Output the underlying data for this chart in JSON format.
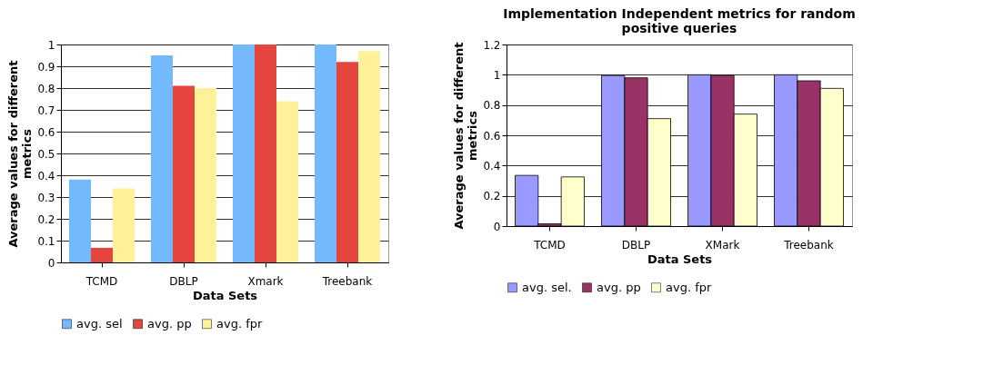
{
  "chart_data": [
    {
      "type": "bar",
      "xlabel": "Data Sets",
      "ylabel": "Average values for different metrics",
      "categories": [
        "TCMD",
        "DBLP",
        "Xmark",
        "Treebank"
      ],
      "series": [
        {
          "name": "avg. sel",
          "color": "#74b9fb",
          "values": [
            0.38,
            0.95,
            1,
            1
          ]
        },
        {
          "name": "avg. pp",
          "color": "#e5453f",
          "values": [
            0.067,
            0.81,
            1,
            0.92
          ]
        },
        {
          "name": "avg. fpr",
          "color": "#fff199",
          "values": [
            0.34,
            0.8,
            0.74,
            0.97
          ]
        }
      ],
      "ylim": [
        0,
        1
      ],
      "yticks": [
        0,
        0.1,
        0.2,
        0.3,
        0.4,
        0.5,
        0.6,
        0.7,
        0.8,
        0.9,
        1
      ],
      "grid": "y",
      "legend": "bottom"
    },
    {
      "type": "bar",
      "title": "Implementation Independent metrics for random positive queries",
      "xlabel": "Data Sets",
      "ylabel": "Average values for different metrics",
      "categories": [
        "TCMD",
        "DBLP",
        "XMark",
        "Treebank"
      ],
      "series": [
        {
          "name": "avg. sel.",
          "color": "#9999ff",
          "values": [
            0.335,
            0.995,
            1,
            1
          ]
        },
        {
          "name": "avg. pp",
          "color": "#993366",
          "values": [
            0.015,
            0.98,
            0.995,
            0.96
          ]
        },
        {
          "name": "avg. fpr",
          "color": "#ffffcc",
          "values": [
            0.325,
            0.71,
            0.74,
            0.91
          ]
        }
      ],
      "ylim": [
        0,
        1.2
      ],
      "yticks": [
        0,
        0.2,
        0.4,
        0.6,
        0.8,
        1,
        1.2
      ],
      "grid": "y",
      "legend": "bottom"
    }
  ]
}
